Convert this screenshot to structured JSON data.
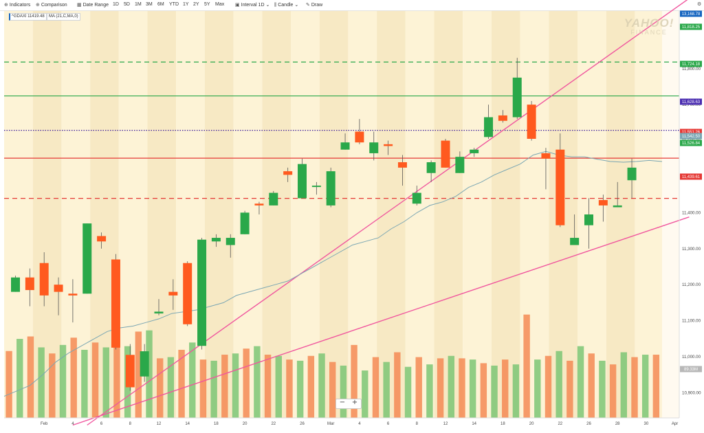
{
  "toolbar": {
    "indicators": "Indicators",
    "comparison": "Comparison",
    "date_range": "Date Range",
    "ranges": [
      "1D",
      "5D",
      "1M",
      "3M",
      "6M",
      "YTD",
      "1Y",
      "2Y",
      "5Y",
      "Max"
    ],
    "interval_label": "Interval",
    "interval_value": "1D",
    "chart_type": "Candle",
    "draw": "Draw",
    "icons": {
      "indicators": "plus-circle-icon",
      "comparison": "plus-circle-icon",
      "date_range": "calendar-icon",
      "interval": "interval-icon",
      "chart_type": "candle-icon",
      "draw": "pencil-icon",
      "settings": "gear-icon"
    }
  },
  "legend": {
    "symbol": "^GDAXI 11419.48",
    "ma": "MA (21,C,MA,0)"
  },
  "watermark": {
    "line1": "YAHOO!",
    "line2": "FINANCE"
  },
  "zoom": {
    "minus": "−",
    "plus": "+"
  },
  "price_tags": [
    {
      "label": "13,168.78",
      "bg": "#1565c0"
    },
    {
      "label": "11,818.25",
      "bg": "#2aa84a"
    },
    {
      "label": "11,724.18",
      "bg": "#2aa84a"
    },
    {
      "label": "11,628.63",
      "bg": "#4a2db0"
    },
    {
      "label": "11,551.26",
      "bg": "#e53935"
    },
    {
      "label": "11,542.50",
      "bg": "#7aa6b3"
    },
    {
      "label": "11,526.84",
      "bg": "#2aa84a"
    },
    {
      "label": "11,439.61",
      "bg": "#e53935"
    },
    {
      "label": "89.33M",
      "bg": "#b8b8b8"
    }
  ],
  "chart_data": {
    "type": "candlestick",
    "ylim": [
      10830,
      11960
    ],
    "y_ticks": [
      10900,
      11000,
      11100,
      11200,
      11300,
      11400,
      11500,
      11600,
      11700,
      11800
    ],
    "y_tick_labels": [
      "10,900.00",
      "11,000.00",
      "11,100.00",
      "11,200.00",
      "11,300.00",
      "11,400.00",
      "11,500.00",
      "11,600.00",
      "11,700.00",
      "11,800.00"
    ],
    "x_labels": [
      "Feb",
      "4",
      "6",
      "8",
      "12",
      "14",
      "18",
      "20",
      "22",
      "26",
      "Mar",
      "4",
      "6",
      "8",
      "12",
      "14",
      "18",
      "20",
      "22",
      "26",
      "28",
      "30",
      "Apr"
    ],
    "x_label_bar": [
      2,
      4,
      6,
      8,
      10,
      12,
      14,
      16,
      18,
      20,
      22,
      24,
      26,
      28,
      30,
      32,
      34,
      36,
      38,
      40,
      42,
      44,
      46
    ],
    "candles": [
      {
        "o": 11180,
        "h": 11225,
        "l": 11180,
        "c": 11220
      },
      {
        "o": 11220,
        "h": 11245,
        "l": 11140,
        "c": 11185
      },
      {
        "o": 11260,
        "h": 11290,
        "l": 11140,
        "c": 11170
      },
      {
        "o": 11200,
        "h": 11220,
        "l": 11115,
        "c": 11180
      },
      {
        "o": 11175,
        "h": 11215,
        "l": 11095,
        "c": 11170
      },
      {
        "o": 11175,
        "h": 11370,
        "l": 11175,
        "c": 11370
      },
      {
        "o": 11335,
        "h": 11345,
        "l": 11300,
        "c": 11320
      },
      {
        "o": 11270,
        "h": 11285,
        "l": 11020,
        "c": 11025
      },
      {
        "o": 11005,
        "h": 11035,
        "l": 10905,
        "c": 10915
      },
      {
        "o": 10945,
        "h": 11035,
        "l": 10930,
        "c": 11015
      },
      {
        "o": 11120,
        "h": 11160,
        "l": 11115,
        "c": 11125
      },
      {
        "o": 11180,
        "h": 11215,
        "l": 11130,
        "c": 11170
      },
      {
        "o": 11260,
        "h": 11265,
        "l": 11085,
        "c": 11090
      },
      {
        "o": 11030,
        "h": 11330,
        "l": 11020,
        "c": 11325
      },
      {
        "o": 11320,
        "h": 11340,
        "l": 11305,
        "c": 11330
      },
      {
        "o": 11310,
        "h": 11340,
        "l": 11275,
        "c": 11330
      },
      {
        "o": 11340,
        "h": 11405,
        "l": 11340,
        "c": 11400
      },
      {
        "o": 11425,
        "h": 11430,
        "l": 11395,
        "c": 11420
      },
      {
        "o": 11420,
        "h": 11460,
        "l": 11420,
        "c": 11455
      },
      {
        "o": 11515,
        "h": 11525,
        "l": 11485,
        "c": 11505
      },
      {
        "o": 11440,
        "h": 11550,
        "l": 11440,
        "c": 11535
      },
      {
        "o": 11475,
        "h": 11485,
        "l": 11450,
        "c": 11475
      },
      {
        "o": 11420,
        "h": 11525,
        "l": 11415,
        "c": 11515
      },
      {
        "o": 11575,
        "h": 11620,
        "l": 11575,
        "c": 11595
      },
      {
        "o": 11625,
        "h": 11660,
        "l": 11590,
        "c": 11595
      },
      {
        "o": 11565,
        "h": 11625,
        "l": 11545,
        "c": 11595
      },
      {
        "o": 11590,
        "h": 11600,
        "l": 11560,
        "c": 11585
      },
      {
        "o": 11540,
        "h": 11560,
        "l": 11475,
        "c": 11525
      },
      {
        "o": 11425,
        "h": 11475,
        "l": 11420,
        "c": 11455
      },
      {
        "o": 11510,
        "h": 11545,
        "l": 11485,
        "c": 11540
      },
      {
        "o": 11600,
        "h": 11605,
        "l": 11525,
        "c": 11525
      },
      {
        "o": 11510,
        "h": 11570,
        "l": 11510,
        "c": 11555
      },
      {
        "o": 11565,
        "h": 11580,
        "l": 11555,
        "c": 11575
      },
      {
        "o": 11610,
        "h": 11700,
        "l": 11605,
        "c": 11665
      },
      {
        "o": 11670,
        "h": 11685,
        "l": 11650,
        "c": 11655
      },
      {
        "o": 11665,
        "h": 11830,
        "l": 11660,
        "c": 11775
      },
      {
        "o": 11700,
        "h": 11710,
        "l": 11600,
        "c": 11605
      },
      {
        "o": 11565,
        "h": 11580,
        "l": 11465,
        "c": 11550
      },
      {
        "o": 11575,
        "h": 11620,
        "l": 11360,
        "c": 11365
      },
      {
        "o": 11310,
        "h": 11395,
        "l": 11315,
        "c": 11330
      },
      {
        "o": 11365,
        "h": 11440,
        "l": 11300,
        "c": 11395
      },
      {
        "o": 11435,
        "h": 11450,
        "l": 11375,
        "c": 11420
      },
      {
        "o": 11415,
        "h": 11485,
        "l": 11415,
        "c": 11420
      },
      {
        "o": 11490,
        "h": 11550,
        "l": 11440,
        "c": 11525
      }
    ],
    "ma_series": [
      10890,
      10905,
      10920,
      10950,
      10985,
      11010,
      11030,
      11050,
      11070,
      11080,
      11085,
      11095,
      11105,
      11120,
      11125,
      11130,
      11140,
      11150,
      11170,
      11180,
      11190,
      11200,
      11210,
      11230,
      11250,
      11270,
      11290,
      11310,
      11320,
      11330,
      11355,
      11375,
      11400,
      11420,
      11430,
      11445,
      11470,
      11485,
      11505,
      11520,
      11535,
      11560,
      11570,
      11560,
      11555,
      11555,
      11548,
      11542,
      11540,
      11542,
      11545,
      11542
    ],
    "volumes": [
      55,
      65,
      67,
      58,
      53,
      60,
      66,
      56,
      62,
      58,
      65,
      59,
      71,
      72,
      49,
      50,
      56,
      62,
      48,
      47,
      52,
      53,
      57,
      59,
      52,
      51,
      48,
      47,
      51,
      53,
      46,
      43,
      60,
      39,
      50,
      46,
      54,
      42,
      50,
      44,
      49,
      51,
      49,
      48,
      45,
      43,
      48,
      44,
      85,
      48,
      51,
      55,
      47,
      59,
      53,
      47,
      44,
      54,
      50,
      52,
      52
    ],
    "volume_ylim": [
      0,
      95
    ],
    "volume_display": "89.33M",
    "h_lines": [
      {
        "value": 11818.25,
        "color": "#2aa84a",
        "style": "dashed"
      },
      {
        "value": 11724.18,
        "color": "#2aa84a",
        "style": "solid"
      },
      {
        "value": 11628.63,
        "color": "#3c1d9c",
        "style": "dotted"
      },
      {
        "value": 11551.26,
        "color": "#e53935",
        "style": "solid"
      },
      {
        "value": 11439.61,
        "color": "#e53935",
        "style": "dashed"
      }
    ],
    "trend_lines": [
      {
        "from": {
          "bar": 5,
          "value": 10810
        },
        "to": {
          "bar": 47,
          "value": 11995
        },
        "color": "#f0569e"
      },
      {
        "from": {
          "bar": 4,
          "value": 10810
        },
        "to": {
          "bar": 47,
          "value": 11388
        },
        "color": "#f0569e"
      }
    ],
    "grid": false,
    "legend_position": "top-left",
    "colors": {
      "up": "#2aa84a",
      "down": "#ff5a1f",
      "ma": "#7aa6b3",
      "plot_bg_a": "#fdf3d6",
      "plot_bg_b": "#f7e9c4"
    }
  }
}
